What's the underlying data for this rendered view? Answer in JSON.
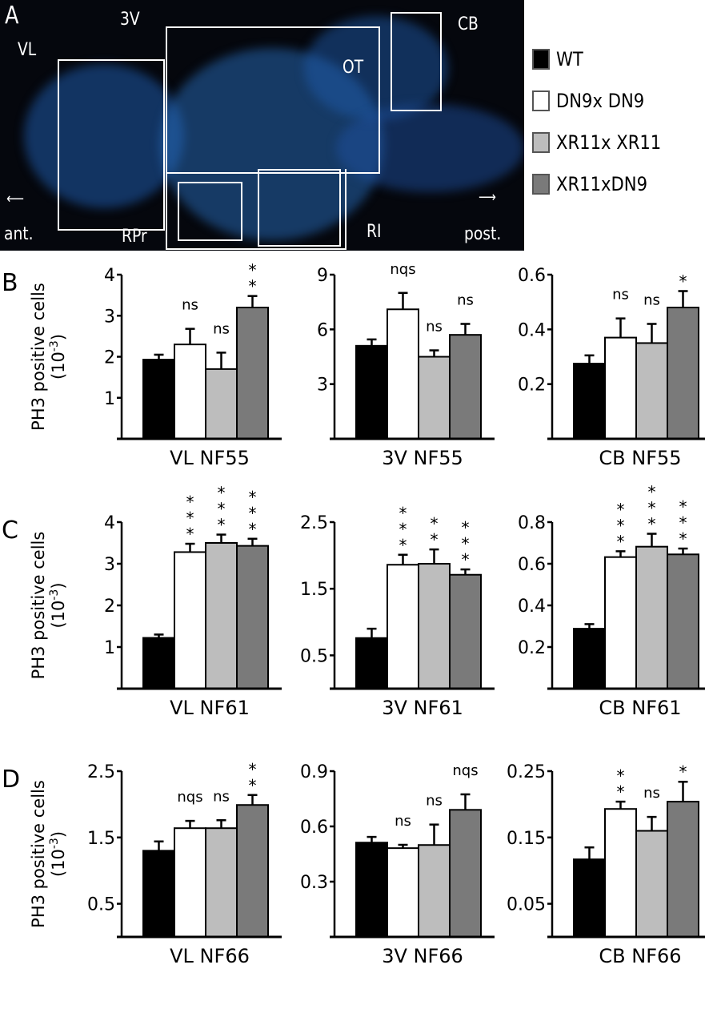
{
  "panel_a": {
    "letter": "A",
    "region_labels": {
      "vl": "VL",
      "v3": "3V",
      "ot": "OT",
      "cb": "CB",
      "rpr": "RPr",
      "ri": "RI"
    },
    "direction_labels": {
      "anterior": "ant.",
      "posterior": "post."
    }
  },
  "legend": [
    {
      "label": "WT",
      "color": "#000000"
    },
    {
      "label": "DN9x DN9",
      "color": "#ffffff"
    },
    {
      "label": "XR11x XR11",
      "color": "#bdbdbd"
    },
    {
      "label": "XR11xDN9",
      "color": "#7a7a7a"
    }
  ],
  "rows": [
    {
      "letter": "B",
      "ylabel": "PH3 positive cells",
      "yunit": "(10",
      "yunit_exp": "-3",
      "yunit_close": ")"
    },
    {
      "letter": "C",
      "ylabel": "PH3 positive cells",
      "yunit": "(10",
      "yunit_exp": "-3",
      "yunit_close": ")"
    },
    {
      "letter": "D",
      "ylabel": "PH3 positive cells",
      "yunit": "(10",
      "yunit_exp": "-3",
      "yunit_close": ")"
    }
  ],
  "chart_data": [
    {
      "type": "bar",
      "row": "B",
      "xlabel": "VL  NF55",
      "ylim": [
        0,
        4
      ],
      "ticks": [
        1,
        2,
        3,
        4
      ],
      "tick_labels": [
        "1",
        "2",
        "3",
        "4"
      ],
      "values": [
        1.93,
        2.3,
        1.7,
        3.2
      ],
      "error_top": [
        2.05,
        2.68,
        2.1,
        3.48
      ],
      "significance": [
        "",
        "ns",
        "ns",
        "**"
      ]
    },
    {
      "type": "bar",
      "row": "B",
      "xlabel": "3V  NF55",
      "ylim": [
        0,
        9
      ],
      "ticks": [
        3,
        6,
        9
      ],
      "tick_labels": [
        "3",
        "6",
        "9"
      ],
      "values": [
        5.1,
        7.1,
        4.5,
        5.7
      ],
      "error_top": [
        5.45,
        8.0,
        4.85,
        6.3
      ],
      "significance": [
        "",
        "nqs",
        "ns",
        "ns"
      ]
    },
    {
      "type": "bar",
      "row": "B",
      "xlabel": "CB  NF55",
      "ylim": [
        0,
        0.6
      ],
      "ticks": [
        0.2,
        0.4,
        0.6
      ],
      "tick_labels": [
        "0.2",
        "0.4",
        "0.6"
      ],
      "values": [
        0.275,
        0.37,
        0.35,
        0.48
      ],
      "error_top": [
        0.305,
        0.44,
        0.42,
        0.54
      ],
      "significance": [
        "",
        "ns",
        "ns",
        "*"
      ]
    },
    {
      "type": "bar",
      "row": "C",
      "xlabel": "VL  NF61",
      "ylim": [
        0,
        4
      ],
      "ticks": [
        1,
        2,
        3,
        4
      ],
      "tick_labels": [
        "1",
        "2",
        "3",
        "4"
      ],
      "values": [
        1.22,
        3.28,
        3.5,
        3.43
      ],
      "error_top": [
        1.3,
        3.48,
        3.7,
        3.6
      ],
      "significance": [
        "",
        "***",
        "***",
        "***"
      ]
    },
    {
      "type": "bar",
      "row": "C",
      "xlabel": "3V  NF61",
      "ylim": [
        0,
        2.5
      ],
      "ticks": [
        0.5,
        1.5,
        2.5
      ],
      "tick_labels": [
        "0.5",
        "1.5",
        "2.5"
      ],
      "values": [
        0.76,
        1.86,
        1.875,
        1.71
      ],
      "error_top": [
        0.9,
        2.01,
        2.09,
        1.79
      ],
      "significance": [
        "",
        "***",
        "**",
        "***"
      ]
    },
    {
      "type": "bar",
      "row": "C",
      "xlabel": "CB  NF61",
      "ylim": [
        0,
        0.8
      ],
      "ticks": [
        0.2,
        0.4,
        0.6,
        0.8
      ],
      "tick_labels": [
        "0.2",
        "0.4",
        "0.6",
        "0.8"
      ],
      "values": [
        0.288,
        0.632,
        0.682,
        0.645
      ],
      "error_top": [
        0.31,
        0.66,
        0.744,
        0.673
      ],
      "significance": [
        "",
        "***",
        "***",
        "***"
      ]
    },
    {
      "type": "bar",
      "row": "D",
      "xlabel": "VL  NF66",
      "ylim": [
        0,
        2.5
      ],
      "ticks": [
        0.5,
        1.5,
        2.5
      ],
      "tick_labels": [
        "0.5",
        "1.5",
        "2.5"
      ],
      "values": [
        1.3,
        1.64,
        1.64,
        1.99
      ],
      "error_top": [
        1.44,
        1.75,
        1.76,
        2.14
      ],
      "significance": [
        "",
        "nqs",
        "ns",
        "**"
      ]
    },
    {
      "type": "bar",
      "row": "D",
      "xlabel": "3V  NF66",
      "ylim": [
        0,
        0.9
      ],
      "ticks": [
        0.3,
        0.6,
        0.9
      ],
      "tick_labels": [
        "0.3",
        "0.6",
        "0.9"
      ],
      "values": [
        0.512,
        0.482,
        0.499,
        0.69
      ],
      "error_top": [
        0.543,
        0.5,
        0.61,
        0.774
      ],
      "significance": [
        "",
        "ns",
        "ns",
        "nqs"
      ]
    },
    {
      "type": "bar",
      "row": "D",
      "xlabel": "CB  NF66",
      "ylim": [
        0,
        0.25
      ],
      "ticks": [
        0.05,
        0.15,
        0.25
      ],
      "tick_labels": [
        "0.05",
        "0.15",
        "0.25"
      ],
      "values": [
        0.117,
        0.193,
        0.16,
        0.204
      ],
      "error_top": [
        0.135,
        0.204,
        0.181,
        0.234
      ],
      "significance": [
        "",
        "**",
        "ns",
        "*"
      ]
    }
  ]
}
